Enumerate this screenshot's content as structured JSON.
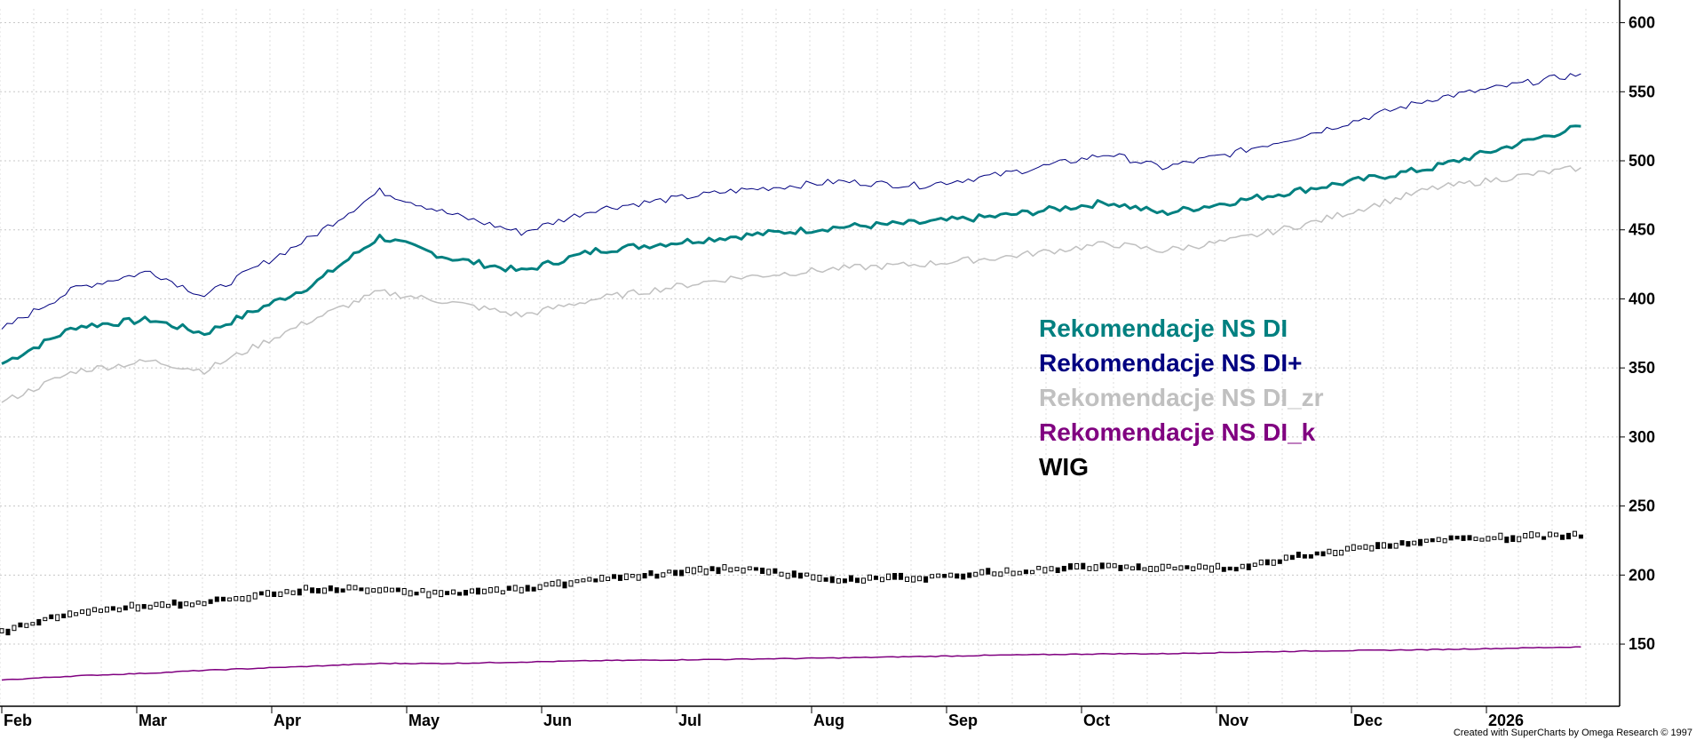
{
  "chart_data": {
    "type": "line",
    "x_tick_labels": [
      "Feb",
      "Mar",
      "Apr",
      "May",
      "Jun",
      "Jul",
      "Aug",
      "Sep",
      "Oct",
      "Nov",
      "Dec",
      "2026"
    ],
    "y_tick_labels": [
      "150",
      "200",
      "250",
      "300",
      "350",
      "400",
      "450",
      "500",
      "550",
      "600"
    ],
    "ylim": [
      105,
      610
    ],
    "grid": true,
    "legend_placement": "center-right",
    "month_index": [
      0,
      1,
      2,
      3,
      4,
      5,
      6,
      7,
      8,
      9,
      10,
      11,
      12,
      13
    ],
    "series": [
      {
        "name": "Rekomendacje NS DI",
        "color": "#008080",
        "width": 3,
        "values": [
          353,
          380,
          385,
          375,
          410,
          445,
          430,
          420,
          435,
          445,
          452,
          455,
          460,
          470,
          462,
          470,
          480,
          495,
          525
        ]
      },
      {
        "name": "Rekomendacje NS DI+",
        "color": "#000080",
        "width": 1,
        "values": [
          378,
          408,
          420,
          402,
          445,
          478,
          462,
          448,
          465,
          478,
          485,
          482,
          490,
          505,
          495,
          505,
          520,
          545,
          563
        ]
      },
      {
        "name": "Rekomendacje NS DI_zr",
        "color": "#c0c0c0",
        "width": 1.5,
        "values": [
          325,
          348,
          355,
          348,
          385,
          405,
          398,
          388,
          400,
          415,
          422,
          425,
          430,
          440,
          435,
          442,
          455,
          480,
          495
        ]
      },
      {
        "name": "Rekomendacje NS DI_k",
        "color": "#800080",
        "width": 1.5,
        "values": [
          124,
          127,
          129,
          131,
          134,
          136,
          136,
          137,
          138,
          139,
          140,
          141,
          142,
          143,
          143,
          144,
          145,
          146,
          148
        ]
      },
      {
        "name": "WIG",
        "color": "#000000",
        "width": 1,
        "values": [
          159,
          173,
          178,
          180,
          190,
          190,
          186,
          190,
          197,
          205,
          197,
          198,
          202,
          207,
          205,
          205,
          215,
          225,
          229
        ]
      }
    ],
    "series_x": [
      0,
      0.55,
      1.1,
      1.5,
      2.3,
      2.8,
      3.3,
      3.85,
      4.4,
      5.4,
      6.2,
      6.8,
      7.4,
      8.2,
      8.6,
      9.1,
      9.7,
      10.6,
      11.7
    ]
  },
  "legend": {
    "items": [
      {
        "label": "Rekomendacje NS DI",
        "color": "#008080"
      },
      {
        "label": "Rekomendacje NS DI+",
        "color": "#000080"
      },
      {
        "label": "Rekomendacje NS DI_zr",
        "color": "#c0c0c0"
      },
      {
        "label": "Rekomendacje NS DI_k",
        "color": "#800080"
      },
      {
        "label": "WIG",
        "color": "#000000"
      }
    ]
  },
  "credit": "Created with SuperCharts by Omega Research © 1997"
}
